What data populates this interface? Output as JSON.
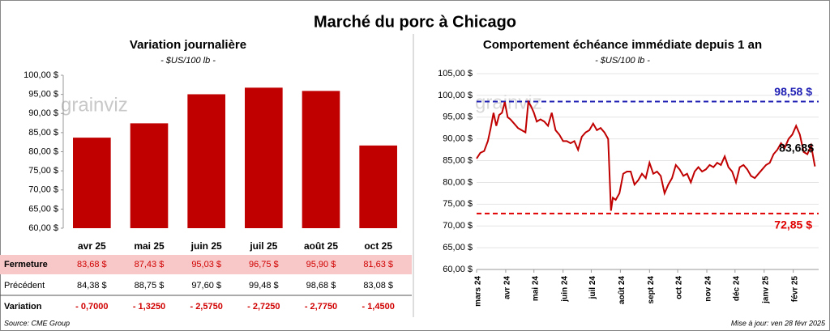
{
  "title": "Marché du porc à Chicago",
  "source": "Source: CME Group",
  "updated": "Mise à jour: ven 28 févr 2025",
  "watermark": "grainviz",
  "chart_data": [
    {
      "type": "bar",
      "title": "Variation journalière",
      "subtitle": "- $US/100 lb -",
      "categories": [
        "avr 25",
        "mai 25",
        "juin 25",
        "juil 25",
        "août 25",
        "oct 25"
      ],
      "values": [
        83.68,
        87.43,
        95.03,
        96.75,
        95.9,
        81.63
      ],
      "color": "#c00000",
      "ylim": [
        60,
        100
      ],
      "yticks": [
        {
          "value": 60,
          "label": "60,00 $"
        },
        {
          "value": 65,
          "label": "65,00 $"
        },
        {
          "value": 70,
          "label": "70,00 $"
        },
        {
          "value": 75,
          "label": "75,00 $"
        },
        {
          "value": 80,
          "label": "80,00 $"
        },
        {
          "value": 85,
          "label": "85,00 $"
        },
        {
          "value": 90,
          "label": "90,00 $"
        },
        {
          "value": 95,
          "label": "95,00 $"
        },
        {
          "value": 100,
          "label": "100,00 $"
        }
      ]
    },
    {
      "type": "line",
      "title": "Comportement échéance immédiate depuis 1 an",
      "subtitle": "- $US/100 lb -",
      "x": [
        0,
        4,
        8,
        12,
        15,
        18,
        21,
        24,
        27,
        30,
        33,
        36,
        40,
        44,
        48,
        52,
        55,
        58,
        61,
        64,
        68,
        72,
        76,
        80,
        84,
        88,
        92,
        96,
        100,
        104,
        108,
        112,
        116,
        120,
        124,
        128,
        132,
        136,
        140,
        143,
        145,
        148,
        152,
        156,
        160,
        164,
        168,
        172,
        176,
        180,
        184,
        188,
        192,
        196,
        200,
        204,
        208,
        212,
        216,
        220,
        224,
        228,
        232,
        236,
        240,
        244,
        248,
        252,
        256,
        260,
        264,
        268,
        272,
        276,
        280,
        284,
        288,
        292,
        296,
        300,
        304,
        308,
        312,
        316,
        320,
        324,
        328,
        332,
        336,
        340,
        344,
        348,
        352,
        356,
        360
      ],
      "values": [
        85.5,
        86.8,
        87.2,
        89.5,
        92.5,
        96.0,
        93.0,
        95.5,
        96.0,
        98.5,
        95.0,
        94.5,
        93.5,
        92.5,
        92.0,
        91.5,
        98.5,
        97.5,
        96.0,
        94.0,
        94.5,
        94.0,
        93.0,
        96.0,
        92.0,
        91.0,
        89.5,
        89.5,
        89.0,
        89.5,
        87.5,
        90.5,
        91.5,
        92.0,
        93.5,
        92.0,
        92.5,
        91.5,
        90.0,
        73.5,
        76.5,
        76.0,
        77.5,
        82.0,
        82.5,
        82.5,
        79.5,
        80.5,
        82.0,
        81.0,
        84.5,
        82.0,
        82.5,
        81.5,
        77.5,
        79.5,
        81.0,
        84.0,
        83.0,
        81.5,
        82.0,
        80.0,
        82.5,
        83.5,
        82.5,
        83.0,
        84.0,
        83.5,
        84.5,
        84.0,
        86.0,
        83.5,
        82.5,
        80.0,
        83.5,
        84.0,
        83.0,
        81.5,
        81.0,
        82.0,
        83.0,
        84.0,
        84.5,
        86.5,
        87.5,
        89.0,
        88.0,
        90.0,
        91.0,
        93.0,
        91.0,
        87.0,
        86.5,
        88.5,
        83.68
      ],
      "color": "#c00000",
      "xlim": [
        0,
        364
      ],
      "xticks": [
        {
          "value": 0,
          "label": "mars 24"
        },
        {
          "value": 31,
          "label": "avr 24"
        },
        {
          "value": 61,
          "label": "mai 24"
        },
        {
          "value": 92,
          "label": "juin 24"
        },
        {
          "value": 122,
          "label": "juil 24"
        },
        {
          "value": 153,
          "label": "août 24"
        },
        {
          "value": 184,
          "label": "sept 24"
        },
        {
          "value": 214,
          "label": "oct 24"
        },
        {
          "value": 245,
          "label": "nov 24"
        },
        {
          "value": 275,
          "label": "déc 24"
        },
        {
          "value": 306,
          "label": "janv 25"
        },
        {
          "value": 337,
          "label": "févr 25"
        }
      ],
      "ylim": [
        60,
        105
      ],
      "yticks": [
        {
          "value": 60,
          "label": "60,00 $"
        },
        {
          "value": 65,
          "label": "65,00 $"
        },
        {
          "value": 70,
          "label": "70,00 $"
        },
        {
          "value": 75,
          "label": "75,00 $"
        },
        {
          "value": 80,
          "label": "80,00 $"
        },
        {
          "value": 85,
          "label": "85,00 $"
        },
        {
          "value": 90,
          "label": "90,00 $"
        },
        {
          "value": 95,
          "label": "95,00 $"
        },
        {
          "value": 100,
          "label": "100,00 $"
        },
        {
          "value": 105,
          "label": "105,00 $"
        }
      ],
      "grid": true,
      "reference_lines": [
        {
          "value": 98.58,
          "label": "98,58 $",
          "color": "#1f1fb4"
        },
        {
          "value": 72.85,
          "label": "72,85 $",
          "color": "#e00000"
        }
      ],
      "last_label": {
        "value": 83.68,
        "label": "83,68$"
      }
    }
  ],
  "table": {
    "rows": [
      [
        "Fermeture",
        "83,68 $",
        "87,43 $",
        "95,03 $",
        "96,75 $",
        "95,90 $",
        "81,63 $"
      ],
      [
        "Précédent",
        "84,38 $",
        "88,75 $",
        "97,60 $",
        "99,48 $",
        "98,68 $",
        "83,08 $"
      ],
      [
        "Variation",
        "- 0,7000",
        "- 1,3250",
        "- 2,5750",
        "- 2,7250",
        "- 2,7750",
        "- 1,4500"
      ]
    ]
  }
}
